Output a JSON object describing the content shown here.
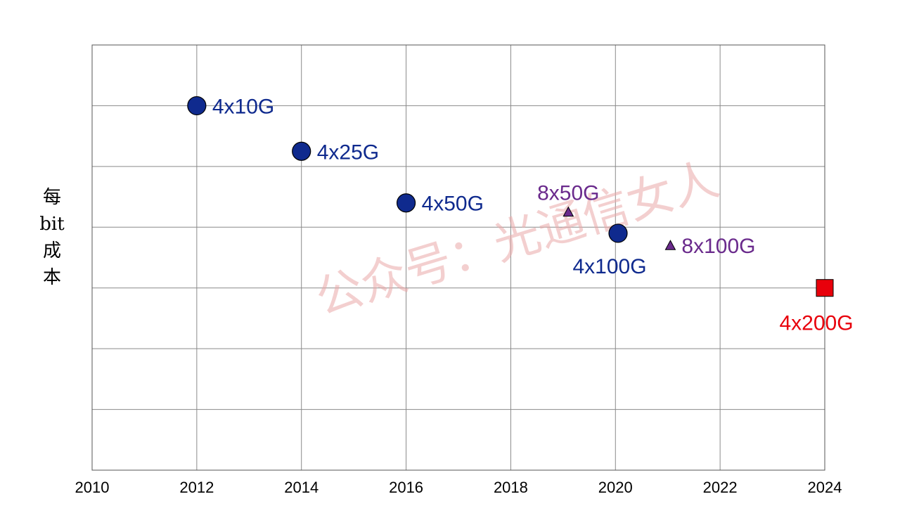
{
  "chart_data": {
    "type": "scatter",
    "title": "",
    "xlabel": "",
    "ylabel_lines": [
      "每",
      "bit",
      "成",
      "本"
    ],
    "xlim": [
      2010,
      2024
    ],
    "ylim": [
      0,
      7
    ],
    "x_ticks": [
      "2010",
      "2012",
      "2014",
      "2016",
      "2018",
      "2020",
      "2022",
      "2024"
    ],
    "y_ticks": [],
    "grid": true,
    "legend": "none",
    "watermark": "公众号：光通信女人",
    "points": [
      {
        "label": "4x10G",
        "x": 2012,
        "y": 6.0,
        "marker": "circle",
        "color": "#0f2a8e",
        "label_pos": "right"
      },
      {
        "label": "4x25G",
        "x": 2014,
        "y": 5.25,
        "marker": "circle",
        "color": "#0f2a8e",
        "label_pos": "right"
      },
      {
        "label": "4x50G",
        "x": 2016,
        "y": 4.4,
        "marker": "circle",
        "color": "#0f2a8e",
        "label_pos": "right"
      },
      {
        "label": "8x50G",
        "x": 2019.1,
        "y": 4.25,
        "marker": "triangle",
        "color": "#6a2a8c",
        "label_pos": "above"
      },
      {
        "label": "4x100G",
        "x": 2020.05,
        "y": 3.9,
        "marker": "circle",
        "color": "#0f2a8e",
        "label_pos": "below-left"
      },
      {
        "label": "8x100G",
        "x": 2021.05,
        "y": 3.7,
        "marker": "triangle",
        "color": "#6a2a8c",
        "label_pos": "right"
      },
      {
        "label": "4x200G",
        "x": 2024,
        "y": 3.0,
        "marker": "square",
        "color": "#e8000b",
        "label_pos": "below"
      }
    ]
  }
}
